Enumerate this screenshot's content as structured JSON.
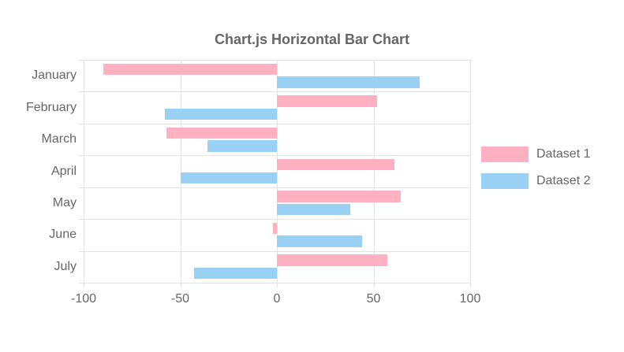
{
  "chart_data": {
    "type": "bar",
    "orientation": "horizontal",
    "title": "Chart.js Horizontal Bar Chart",
    "categories": [
      "January",
      "February",
      "March",
      "April",
      "May",
      "June",
      "July"
    ],
    "series": [
      {
        "name": "Dataset 1",
        "color": "#ffb1c1",
        "values": [
          -90,
          52,
          -57,
          61,
          64,
          -2,
          57
        ]
      },
      {
        "name": "Dataset 2",
        "color": "#9bd0f5",
        "values": [
          74,
          -58,
          -36,
          -50,
          38,
          44,
          -43
        ]
      }
    ],
    "xlim": [
      -100,
      100
    ],
    "x_ticks": [
      -100,
      -50,
      0,
      50,
      100
    ],
    "grid": true,
    "legend_position": "right",
    "text_color": "#666666",
    "grid_color": "#e3e3e3"
  }
}
